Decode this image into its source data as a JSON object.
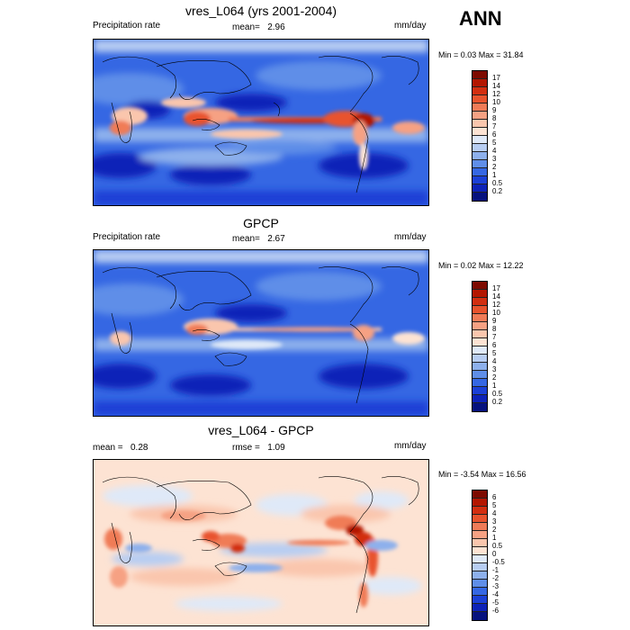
{
  "season": "ANN",
  "units": "mm/day",
  "panels": [
    {
      "title": "vres_L064 (yrs 2001-2004)",
      "left_label": "Precipitation rate",
      "mean_label": "mean=",
      "mean_value": "2.96",
      "units": "mm/day",
      "minmax": "Min =   0.03 Max =  31.84",
      "colorbar": {
        "labels": [
          "17",
          "14",
          "12",
          "10",
          "9",
          "8",
          "7",
          "6",
          "5",
          "4",
          "3",
          "2",
          "1",
          "0.5",
          "0.2"
        ],
        "colors": [
          "#7d0a00",
          "#b31600",
          "#d22e10",
          "#e8532d",
          "#f07b57",
          "#f6a183",
          "#fac6ad",
          "#fde3d3",
          "#dfe9f8",
          "#b7cdf2",
          "#8db0ec",
          "#5f8ee8",
          "#3567e3",
          "#1b40d6",
          "#0d22b8",
          "#06127e"
        ]
      }
    },
    {
      "title": "GPCP",
      "left_label": "Precipitation rate",
      "mean_label": "mean=",
      "mean_value": "2.67",
      "units": "mm/day",
      "minmax": "Min =   0.02 Max =  12.22",
      "colorbar": {
        "labels": [
          "17",
          "14",
          "12",
          "10",
          "9",
          "8",
          "7",
          "6",
          "5",
          "4",
          "3",
          "2",
          "1",
          "0.5",
          "0.2"
        ],
        "colors": [
          "#7d0a00",
          "#b31600",
          "#d22e10",
          "#e8532d",
          "#f07b57",
          "#f6a183",
          "#fac6ad",
          "#fde3d3",
          "#dfe9f8",
          "#b7cdf2",
          "#8db0ec",
          "#5f8ee8",
          "#3567e3",
          "#1b40d6",
          "#0d22b8",
          "#06127e"
        ]
      }
    },
    {
      "title": "vres_L064 - GPCP",
      "left_label": "mean =",
      "left_value": "0.28",
      "rmse_label": "rmse =",
      "rmse_value": "1.09",
      "units": "mm/day",
      "minmax": "Min = -3.54 Max =  16.56",
      "colorbar": {
        "labels": [
          "6",
          "5",
          "4",
          "3",
          "2",
          "1",
          "0.5",
          "0",
          "-0.5",
          "-1",
          "-2",
          "-3",
          "-4",
          "-5",
          "-6"
        ],
        "colors": [
          "#7d0a00",
          "#b31600",
          "#d22e10",
          "#e8532d",
          "#f07b57",
          "#f6a183",
          "#fac6ad",
          "#fde3d3",
          "#dfe9f8",
          "#b7cdf2",
          "#8db0ec",
          "#5f8ee8",
          "#3567e3",
          "#1b40d6",
          "#0d22b8",
          "#06127e"
        ]
      }
    }
  ]
}
